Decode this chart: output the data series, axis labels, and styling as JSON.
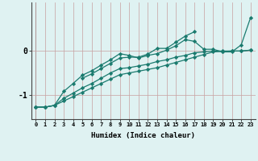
{
  "xlabel": "Humidex (Indice chaleur)",
  "bg_color": "#dff2f2",
  "grid_color": "#c8a0a0",
  "line_color": "#1a7a6e",
  "xlim": [
    -0.5,
    23.5
  ],
  "ylim": [
    -1.55,
    1.1
  ],
  "yticks": [
    0,
    -1
  ],
  "xticks": [
    0,
    1,
    2,
    3,
    4,
    5,
    6,
    7,
    8,
    9,
    10,
    11,
    12,
    13,
    14,
    15,
    16,
    17,
    18,
    19,
    20,
    21,
    22,
    23
  ],
  "series": [
    [
      null,
      null,
      null,
      null,
      null,
      -0.62,
      -0.52,
      -0.4,
      -0.28,
      -0.16,
      -0.14,
      -0.14,
      -0.07,
      0.06,
      0.06,
      0.2,
      0.34,
      0.44,
      null,
      null,
      null,
      null,
      null,
      null
    ],
    [
      -1.28,
      -1.28,
      -1.24,
      -0.92,
      -0.74,
      -0.55,
      -0.45,
      -0.32,
      -0.2,
      -0.06,
      -0.1,
      -0.16,
      -0.1,
      -0.06,
      0.02,
      0.12,
      0.26,
      0.22,
      0.04,
      0.04,
      -0.02,
      -0.02,
      0.14,
      0.76
    ],
    [
      -1.28,
      -1.28,
      -1.24,
      -1.08,
      -0.96,
      -0.84,
      -0.74,
      -0.62,
      -0.5,
      -0.4,
      -0.38,
      -0.34,
      -0.3,
      -0.24,
      -0.2,
      -0.14,
      -0.1,
      -0.04,
      -0.02,
      0.0,
      0.0,
      0.0,
      0.0,
      0.02
    ],
    [
      -1.28,
      -1.28,
      -1.24,
      -1.14,
      -1.04,
      -0.94,
      -0.84,
      -0.74,
      -0.64,
      -0.54,
      -0.5,
      -0.46,
      -0.42,
      -0.38,
      -0.32,
      -0.26,
      -0.2,
      -0.14,
      -0.08,
      -0.02,
      -0.01,
      0.0,
      0.0,
      0.02
    ]
  ]
}
